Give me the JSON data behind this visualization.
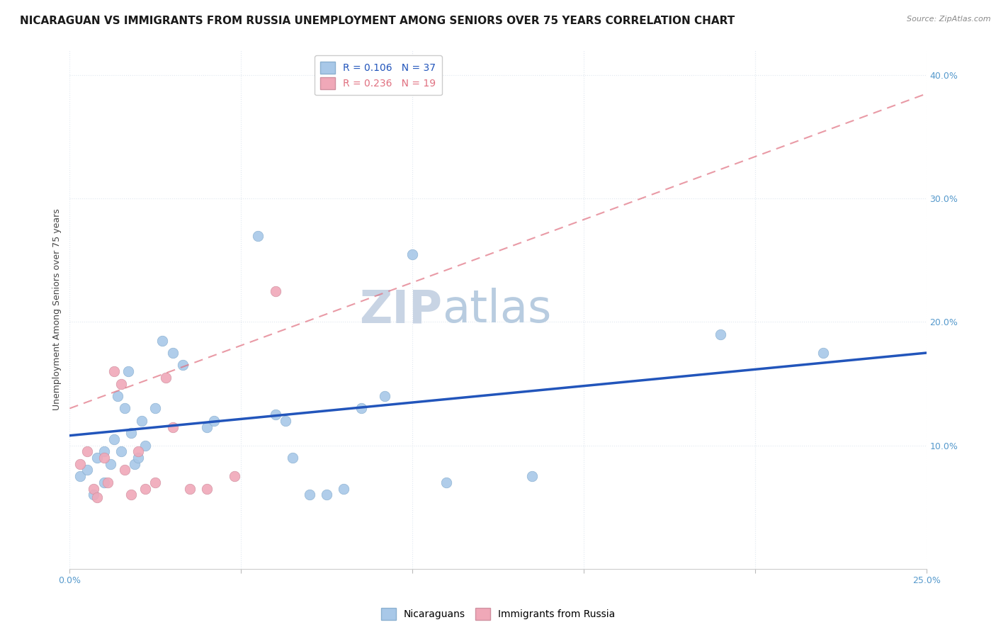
{
  "title": "NICARAGUAN VS IMMIGRANTS FROM RUSSIA UNEMPLOYMENT AMONG SENIORS OVER 75 YEARS CORRELATION CHART",
  "source": "Source: ZipAtlas.com",
  "ylabel": "Unemployment Among Seniors over 75 years",
  "xlabel": "",
  "xlim": [
    0.0,
    0.25
  ],
  "ylim": [
    0.0,
    0.42
  ],
  "xticks": [
    0.0,
    0.05,
    0.1,
    0.15,
    0.2,
    0.25
  ],
  "yticks": [
    0.1,
    0.2,
    0.3,
    0.4
  ],
  "xticklabels": [
    "0.0%",
    "",
    "",
    "",
    "",
    "25.0%"
  ],
  "yticklabels_right": [
    "10.0%",
    "20.0%",
    "30.0%",
    "40.0%"
  ],
  "blue_R": 0.106,
  "blue_N": 37,
  "pink_R": 0.236,
  "pink_N": 19,
  "blue_color": "#a8c8e8",
  "pink_color": "#f0a8b8",
  "blue_line_color": "#2255bb",
  "pink_line_color": "#e07080",
  "watermark_zip": "ZIP",
  "watermark_atlas": "atlas",
  "watermark_zip_color": "#c8d4e4",
  "watermark_atlas_color": "#b8cce0",
  "blue_scatter_x": [
    0.003,
    0.005,
    0.007,
    0.008,
    0.01,
    0.01,
    0.012,
    0.013,
    0.014,
    0.015,
    0.016,
    0.017,
    0.018,
    0.019,
    0.02,
    0.021,
    0.022,
    0.025,
    0.027,
    0.03,
    0.033,
    0.04,
    0.042,
    0.055,
    0.06,
    0.063,
    0.065,
    0.07,
    0.075,
    0.08,
    0.085,
    0.092,
    0.1,
    0.11,
    0.135,
    0.19,
    0.22
  ],
  "blue_scatter_y": [
    0.075,
    0.08,
    0.06,
    0.09,
    0.095,
    0.07,
    0.085,
    0.105,
    0.14,
    0.095,
    0.13,
    0.16,
    0.11,
    0.085,
    0.09,
    0.12,
    0.1,
    0.13,
    0.185,
    0.175,
    0.165,
    0.115,
    0.12,
    0.27,
    0.125,
    0.12,
    0.09,
    0.06,
    0.06,
    0.065,
    0.13,
    0.14,
    0.255,
    0.07,
    0.075,
    0.19,
    0.175
  ],
  "pink_scatter_x": [
    0.003,
    0.005,
    0.007,
    0.008,
    0.01,
    0.011,
    0.013,
    0.015,
    0.016,
    0.018,
    0.02,
    0.022,
    0.025,
    0.028,
    0.03,
    0.035,
    0.04,
    0.048,
    0.06
  ],
  "pink_scatter_y": [
    0.085,
    0.095,
    0.065,
    0.058,
    0.09,
    0.07,
    0.16,
    0.15,
    0.08,
    0.06,
    0.095,
    0.065,
    0.07,
    0.155,
    0.115,
    0.065,
    0.065,
    0.075,
    0.225
  ],
  "blue_trend_x0": 0.0,
  "blue_trend_x1": 0.25,
  "blue_trend_y0": 0.108,
  "blue_trend_y1": 0.175,
  "pink_trend_x0": 0.0,
  "pink_trend_x1": 0.25,
  "pink_trend_y0": 0.13,
  "pink_trend_y1": 0.385,
  "background_color": "#ffffff",
  "grid_color": "#e0e8f0",
  "title_fontsize": 11,
  "label_fontsize": 9,
  "tick_fontsize": 9,
  "legend_fontsize": 10,
  "scatter_size": 110
}
